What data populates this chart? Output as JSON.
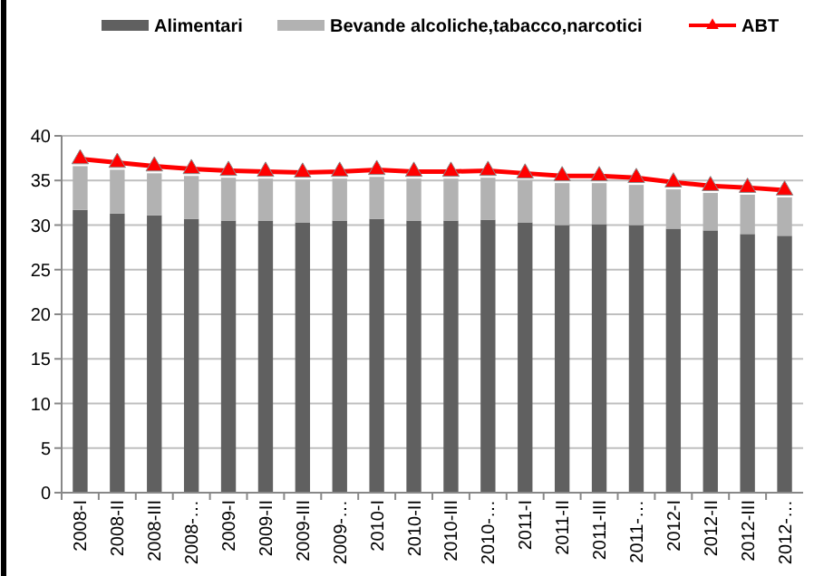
{
  "chart_data": {
    "type": "bar",
    "stacked": true,
    "categories": [
      "2008-I",
      "2008-II",
      "2008-III",
      "2008-…",
      "2009-I",
      "2009-II",
      "2009-III",
      "2009-…",
      "2010-I",
      "2010-II",
      "2010-III",
      "2010-…",
      "2011-I",
      "2011-II",
      "2011-III",
      "2011-…",
      "2012-I",
      "2012-II",
      "2012-III",
      "2012-…"
    ],
    "series": [
      {
        "name": "Alimentari",
        "color": "#606060",
        "values": [
          31.7,
          31.3,
          31.1,
          30.7,
          30.5,
          30.5,
          30.3,
          30.5,
          30.7,
          30.5,
          30.5,
          30.6,
          30.3,
          30.0,
          30.1,
          30.0,
          29.6,
          29.4,
          29.0,
          28.8
        ]
      },
      {
        "name": "Bevande alcoliche,tabacco,narcotici",
        "color": "#b2b2b2",
        "values": [
          4.9,
          4.9,
          4.7,
          4.8,
          4.8,
          4.7,
          4.8,
          4.7,
          4.7,
          4.7,
          4.7,
          4.7,
          4.7,
          4.7,
          4.6,
          4.5,
          4.4,
          4.2,
          4.4,
          4.3
        ]
      },
      {
        "name": "ABT",
        "type": "line",
        "color": "#ff0000",
        "marker": "triangle",
        "values": [
          37.4,
          37.0,
          36.6,
          36.3,
          36.1,
          36.0,
          35.9,
          36.0,
          36.2,
          36.0,
          36.0,
          36.1,
          35.8,
          35.5,
          35.5,
          35.3,
          34.8,
          34.4,
          34.2,
          33.9
        ]
      }
    ],
    "ylim": [
      0,
      40
    ],
    "yticks": [
      0,
      5,
      10,
      15,
      20,
      25,
      30,
      35,
      40
    ],
    "grid": "y",
    "legend": "top"
  }
}
